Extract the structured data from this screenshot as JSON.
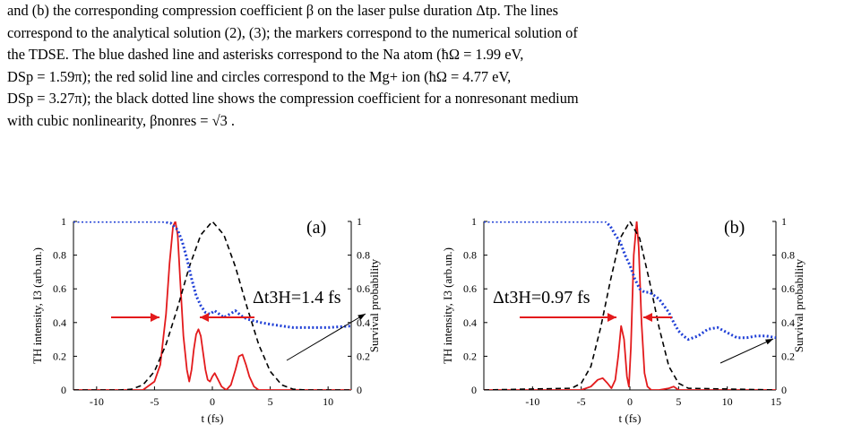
{
  "caption": {
    "lines": [
      "and (b) the corresponding compression coefficient β on the laser pulse duration Δtp. The lines",
      "correspond to the analytical solution (2), (3); the markers correspond to the numerical solution of",
      "the TDSE. The blue dashed line and asterisks correspond to the Na atom (ħΩ = 1.99 eV,",
      "DSp = 1.59π); the red solid line and circles correspond to the Mg+ ion (ħΩ = 4.77 eV,",
      "DSp = 3.27π); the black dotted line shows the compression coefficient for a nonresonant medium",
      "with cubic nonlinearity, βnonres = √3 ."
    ]
  },
  "colors": {
    "th": "#e31a1c",
    "survival": "#1f3fd6",
    "pulse": "#000000",
    "axis": "#000000"
  },
  "chart_data": [
    {
      "type": "line",
      "panel_label": "(a)",
      "xlabel": "t (fs)",
      "ylabel_left": "TH intensity, I3 (arb.un.)",
      "ylabel_right": "Survival probability",
      "xlim": [
        -12,
        12
      ],
      "ylim": [
        0,
        1
      ],
      "ylim_right": [
        0,
        1
      ],
      "xticks": [
        -10,
        -5,
        0,
        5,
        10
      ],
      "yticks": [
        "0",
        "0.2",
        "0.4",
        "0.6",
        "0.8",
        "1"
      ],
      "annotation": "Δt3H=1.4 fs",
      "series": [
        {
          "style": "red-solid",
          "x": [
            -12,
            -6.0,
            -5.0,
            -4.5,
            -4.0,
            -3.7,
            -3.4,
            -3.2,
            -3.0,
            -2.8,
            -2.5,
            -2.2,
            -2.0,
            -1.8,
            -1.6,
            -1.4,
            -1.2,
            -1.0,
            -0.8,
            -0.6,
            -0.4,
            -0.2,
            0.0,
            0.2,
            0.5,
            0.8,
            1.2,
            1.6,
            2.0,
            2.3,
            2.6,
            2.9,
            3.2,
            3.6,
            4.0,
            4.5,
            5.0,
            12
          ],
          "y": [
            0,
            0.0,
            0.05,
            0.15,
            0.45,
            0.75,
            0.97,
            1.0,
            0.92,
            0.68,
            0.32,
            0.12,
            0.05,
            0.12,
            0.24,
            0.33,
            0.36,
            0.32,
            0.22,
            0.12,
            0.06,
            0.05,
            0.08,
            0.1,
            0.06,
            0.02,
            0.0,
            0.03,
            0.12,
            0.2,
            0.21,
            0.15,
            0.08,
            0.02,
            0.0,
            0.0,
            0.0,
            0
          ]
        },
        {
          "style": "black-dashed",
          "x": [
            -12,
            -8,
            -7,
            -6,
            -5,
            -4,
            -3,
            -2,
            -1,
            0,
            1,
            2,
            3,
            4,
            5,
            6,
            7,
            8,
            12
          ],
          "y": [
            0,
            0,
            0.004,
            0.03,
            0.11,
            0.27,
            0.49,
            0.73,
            0.92,
            1.0,
            0.92,
            0.73,
            0.49,
            0.27,
            0.11,
            0.03,
            0.004,
            0,
            0
          ]
        },
        {
          "style": "blue-dotted",
          "x": [
            -12,
            -5,
            -4.3,
            -3.6,
            -3.0,
            -2.6,
            -2.2,
            -1.8,
            -1.4,
            -1.0,
            -0.6,
            -0.2,
            0.2,
            0.6,
            1.0,
            1.5,
            2.0,
            2.5,
            3.0,
            3.6,
            4.2,
            5.0,
            6.0,
            7.0,
            8.0,
            9.0,
            10.0,
            11.0,
            12
          ],
          "y": [
            1.0,
            1.0,
            1.0,
            0.99,
            0.95,
            0.88,
            0.78,
            0.66,
            0.56,
            0.5,
            0.46,
            0.45,
            0.47,
            0.45,
            0.43,
            0.45,
            0.47,
            0.44,
            0.42,
            0.41,
            0.4,
            0.39,
            0.38,
            0.37,
            0.37,
            0.37,
            0.37,
            0.375,
            0.38
          ]
        }
      ]
    },
    {
      "type": "line",
      "panel_label": "(b)",
      "xlabel": "t (fs)",
      "ylabel_left": "TH intensity, I3 (arb.un.)",
      "ylabel_right": "Survival probability",
      "xlim": [
        -15,
        15
      ],
      "ylim": [
        0,
        1
      ],
      "ylim_right": [
        0,
        1
      ],
      "xticks": [
        -10,
        -5,
        0,
        5,
        10,
        15
      ],
      "yticks": [
        "0",
        "0.2",
        "0.4",
        "0.6",
        "0.8",
        "1"
      ],
      "annotation": "Δt3H=0.97 fs",
      "series": [
        {
          "style": "red-solid",
          "x": [
            -15,
            -5.0,
            -4.0,
            -3.3,
            -2.8,
            -2.3,
            -1.9,
            -1.5,
            -1.2,
            -0.9,
            -0.6,
            -0.3,
            -0.1,
            0.1,
            0.4,
            0.7,
            0.9,
            1.2,
            1.5,
            1.8,
            2.2,
            3.0,
            4.0,
            4.5,
            5.0,
            15
          ],
          "y": [
            0,
            0.0,
            0.02,
            0.06,
            0.07,
            0.04,
            0.01,
            0.06,
            0.2,
            0.38,
            0.3,
            0.08,
            0.02,
            0.25,
            0.8,
            1.0,
            0.85,
            0.4,
            0.1,
            0.02,
            0.0,
            0.0,
            0.01,
            0.02,
            0.0,
            0
          ]
        },
        {
          "style": "black-dashed",
          "x": [
            -15,
            -6,
            -5,
            -4,
            -3,
            -2,
            -1,
            0,
            1,
            2,
            3,
            4,
            5,
            6,
            15
          ],
          "y": [
            0,
            0.01,
            0.04,
            0.14,
            0.37,
            0.65,
            0.9,
            1.0,
            0.9,
            0.65,
            0.37,
            0.14,
            0.04,
            0.01,
            0
          ]
        },
        {
          "style": "blue-dotted",
          "x": [
            -15,
            -2.5,
            -2.0,
            -1.5,
            -1.0,
            -0.5,
            0.0,
            0.5,
            1.0,
            1.5,
            2.0,
            2.5,
            3.0,
            3.5,
            4.0,
            4.5,
            5.0,
            5.5,
            6.0,
            7.0,
            8.0,
            9.0,
            10.0,
            11.0,
            12.0,
            13.0,
            14.0,
            15
          ],
          "y": [
            1.0,
            1.0,
            0.97,
            0.92,
            0.88,
            0.8,
            0.74,
            0.66,
            0.6,
            0.58,
            0.58,
            0.56,
            0.54,
            0.5,
            0.46,
            0.4,
            0.35,
            0.32,
            0.3,
            0.32,
            0.36,
            0.37,
            0.34,
            0.31,
            0.31,
            0.32,
            0.32,
            0.31
          ]
        }
      ]
    }
  ]
}
